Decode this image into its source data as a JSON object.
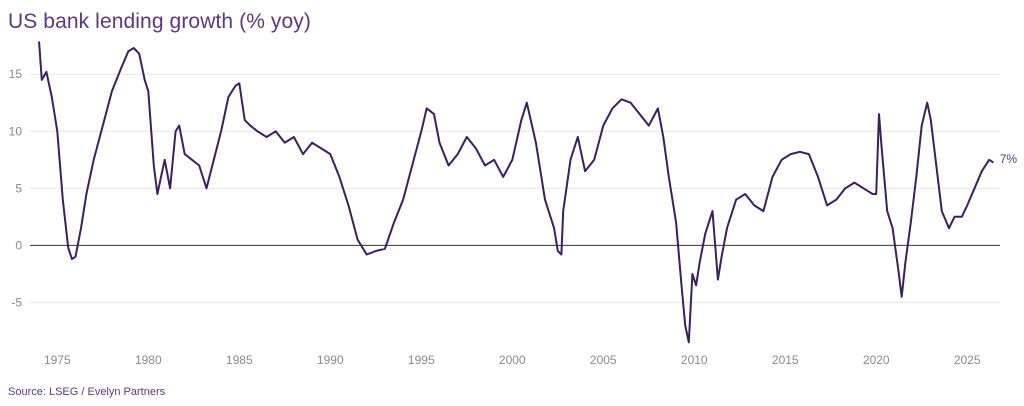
{
  "title": "US bank lending growth (% yoy)",
  "source": "Source: LSEG / Evelyn Partners",
  "colors": {
    "line": "#3b1f5e",
    "text": "#5a3a78",
    "grid": "#e6e6e6",
    "zero": "#333333",
    "tick": "#8a8a8a"
  },
  "chart_data": {
    "type": "line",
    "title": "US bank lending growth (% yoy)",
    "xlabel": "",
    "ylabel": "",
    "xlim": [
      1973.5,
      2026.8
    ],
    "ylim": [
      -9,
      18
    ],
    "xticks": [
      1975,
      1980,
      1985,
      1990,
      1995,
      2000,
      2005,
      2010,
      2015,
      2020,
      2025
    ],
    "yticks": [
      -5,
      0,
      5,
      10,
      15
    ],
    "grid": "horizontal",
    "end_label": "7%",
    "series": [
      {
        "x": [
          1974.0,
          1974.15,
          1974.4,
          1974.7,
          1975.0,
          1975.3,
          1975.6,
          1975.8,
          1976.0,
          1976.3,
          1976.6,
          1977.0,
          1977.5,
          1978.0,
          1978.5,
          1978.9,
          1979.2,
          1979.5,
          1979.8,
          1980.0,
          1980.3,
          1980.5,
          1980.7,
          1980.9,
          1981.2,
          1981.5,
          1981.7,
          1982.0,
          1982.4,
          1982.8,
          1983.2,
          1983.6,
          1984.0,
          1984.4,
          1984.8,
          1985.0,
          1985.3,
          1985.6,
          1986.0,
          1986.5,
          1987.0,
          1987.5,
          1988.0,
          1988.5,
          1989.0,
          1989.5,
          1990.0,
          1990.5,
          1991.0,
          1991.5,
          1992.0,
          1992.5,
          1993.0,
          1993.5,
          1994.0,
          1994.5,
          1995.0,
          1995.3,
          1995.7,
          1996.0,
          1996.5,
          1997.0,
          1997.5,
          1998.0,
          1998.5,
          1999.0,
          1999.5,
          2000.0,
          2000.5,
          2000.8,
          2001.3,
          2001.8,
          2002.3,
          2002.5,
          2002.7,
          2002.8,
          2003.2,
          2003.6,
          2004.0,
          2004.5,
          2005.0,
          2005.5,
          2006.0,
          2006.5,
          2007.0,
          2007.5,
          2008.0,
          2008.3,
          2008.6,
          2009.0,
          2009.3,
          2009.5,
          2009.7,
          2009.9,
          2010.1,
          2010.3,
          2010.6,
          2011.0,
          2011.3,
          2011.5,
          2011.8,
          2012.3,
          2012.8,
          2013.3,
          2013.8,
          2014.3,
          2014.8,
          2015.3,
          2015.8,
          2016.3,
          2016.8,
          2017.3,
          2017.8,
          2018.3,
          2018.8,
          2019.3,
          2019.8,
          2020.0,
          2020.15,
          2020.3,
          2020.6,
          2020.9,
          2021.2,
          2021.4,
          2021.6,
          2021.9,
          2022.2,
          2022.5,
          2022.8,
          2023.0,
          2023.3,
          2023.6,
          2024.0,
          2024.3,
          2024.7,
          2025.0,
          2025.4,
          2025.8,
          2026.2,
          2026.4
        ],
        "y": [
          17.8,
          14.5,
          15.2,
          13.0,
          10.0,
          4.0,
          -0.2,
          -1.2,
          -1.0,
          1.5,
          4.5,
          7.5,
          10.5,
          13.5,
          15.5,
          17.0,
          17.3,
          16.8,
          14.5,
          13.5,
          7.0,
          4.5,
          6.0,
          7.5,
          5.0,
          10.0,
          10.5,
          8.0,
          7.5,
          7.0,
          5.0,
          7.5,
          10.0,
          13.0,
          14.0,
          14.2,
          11.0,
          10.5,
          10.0,
          9.5,
          10.0,
          9.0,
          9.5,
          8.0,
          9.0,
          8.5,
          8.0,
          6.0,
          3.5,
          0.5,
          -0.8,
          -0.5,
          -0.3,
          2.0,
          4.0,
          7.0,
          10.0,
          12.0,
          11.5,
          9.0,
          7.0,
          8.0,
          9.5,
          8.5,
          7.0,
          7.5,
          6.0,
          7.5,
          11.0,
          12.5,
          9.0,
          4.0,
          1.5,
          -0.5,
          -0.8,
          3.0,
          7.5,
          9.5,
          6.5,
          7.5,
          10.5,
          12.0,
          12.8,
          12.5,
          11.5,
          10.5,
          12.0,
          9.5,
          6.0,
          2.0,
          -3.5,
          -7.0,
          -8.5,
          -2.5,
          -3.5,
          -1.5,
          1.0,
          3.0,
          -3.0,
          -1.0,
          1.5,
          4.0,
          4.5,
          3.5,
          3.0,
          6.0,
          7.5,
          8.0,
          8.2,
          8.0,
          6.0,
          3.5,
          4.0,
          5.0,
          5.5,
          5.0,
          4.5,
          4.5,
          11.5,
          8.5,
          3.0,
          1.5,
          -2.0,
          -4.5,
          -1.5,
          2.0,
          6.0,
          10.5,
          12.5,
          11.0,
          7.0,
          3.0,
          1.5,
          2.5,
          2.5,
          3.5,
          5.0,
          6.5,
          7.5,
          7.3
        ]
      }
    ]
  }
}
